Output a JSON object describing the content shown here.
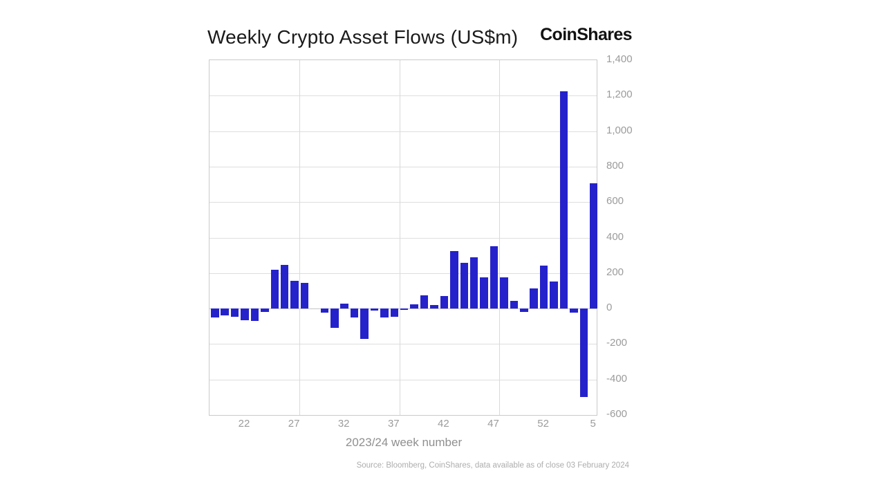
{
  "title": "Weekly Crypto Asset Flows (US$m)",
  "logo_text": "CoinShares",
  "source_note": "Source: Bloomberg, CoinShares, data available as of close 03 February 2024",
  "chart_data": {
    "type": "bar",
    "title": "Weekly Crypto Asset Flows (US$m)",
    "xlabel": "2023/24 week number",
    "ylabel": "",
    "ylim": [
      -600,
      1400
    ],
    "grid": "on",
    "legend": "none",
    "bar_color": "#2522cb",
    "categories": [
      "19",
      "20",
      "21",
      "22",
      "23",
      "24",
      "25",
      "26",
      "27",
      "28",
      "29",
      "30",
      "31",
      "32",
      "33",
      "34",
      "35",
      "36",
      "37",
      "38",
      "39",
      "40",
      "41",
      "42",
      "43",
      "44",
      "45",
      "46",
      "47",
      "48",
      "49",
      "50",
      "51",
      "52",
      "1",
      "2",
      "3",
      "4",
      "5"
    ],
    "values": [
      -50,
      -40,
      -45,
      -65,
      -70,
      -20,
      218,
      245,
      155,
      145,
      0,
      -25,
      -110,
      26,
      -52,
      -170,
      -10,
      -49,
      -45,
      -9,
      23,
      74,
      19,
      70,
      325,
      258,
      290,
      176,
      350,
      176,
      43,
      -20,
      115,
      243,
      151,
      1225,
      -25,
      -500,
      708
    ],
    "x_tick_labels": [
      "22",
      "27",
      "32",
      "37",
      "42",
      "47",
      "52",
      "5"
    ],
    "y_tick_values": [
      1400,
      1200,
      1000,
      800,
      600,
      400,
      200,
      0,
      -200,
      -400,
      -600
    ],
    "y_tick_labels": [
      "1,400",
      "1,200",
      "1,000",
      "800",
      "600",
      "400",
      "200",
      "0",
      "-200",
      "-400",
      "-600"
    ],
    "v_gridline_week_offsets": [
      8.5,
      18.5,
      28.5
    ]
  }
}
